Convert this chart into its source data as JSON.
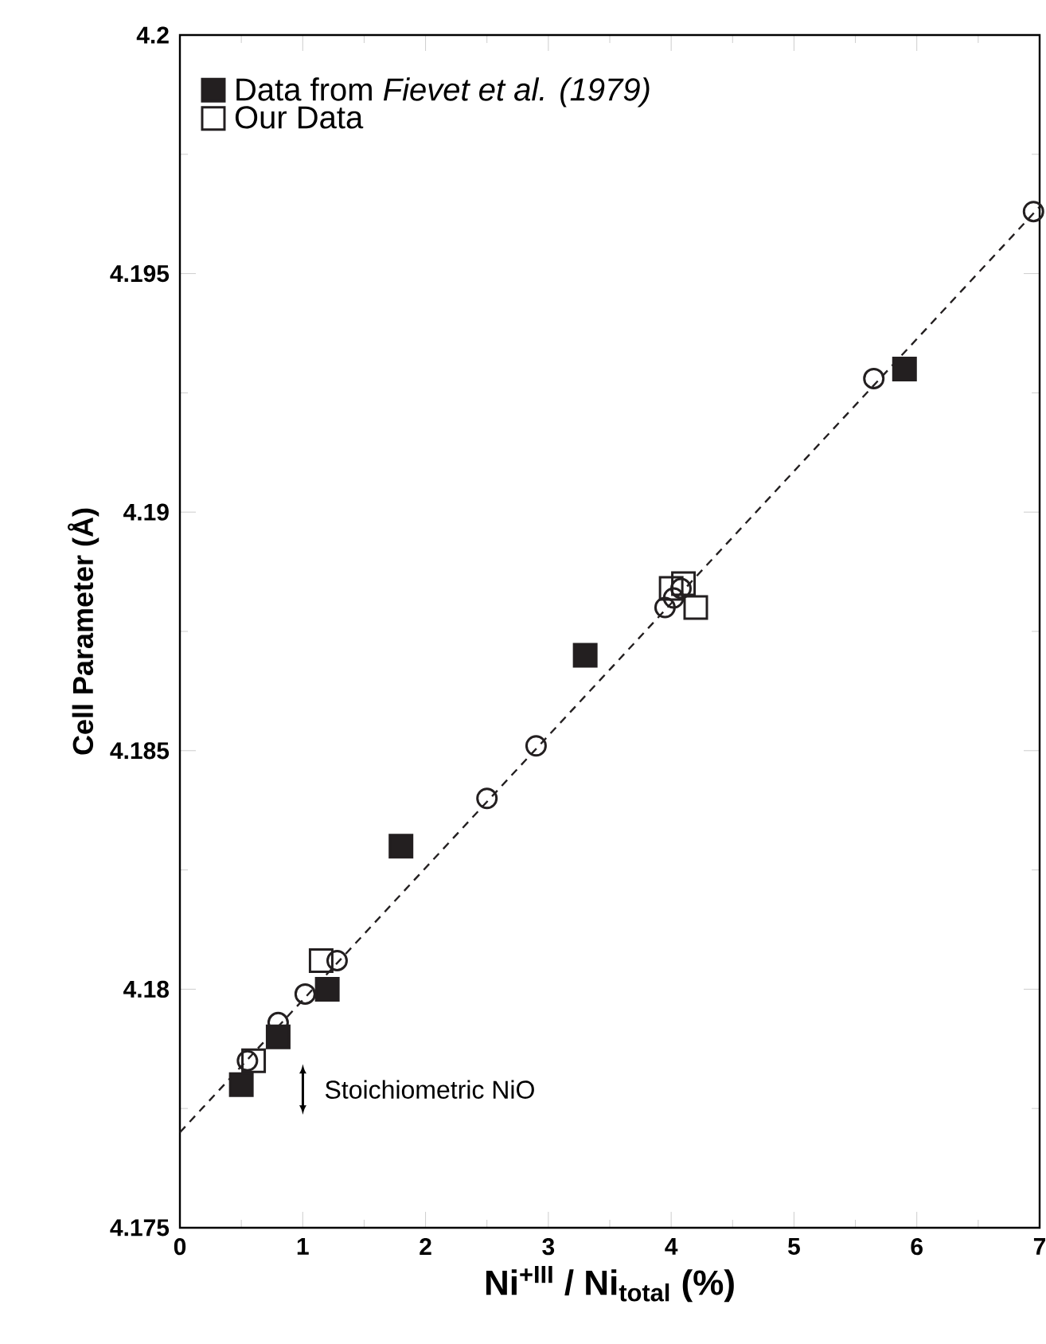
{
  "chart_data": {
    "type": "scatter",
    "xlabel": "Ni$^{+III}$ / Ni$_{total}$ (%)",
    "ylabel": "Cell Parameter (Å)",
    "xlim": [
      0,
      7
    ],
    "ylim": [
      4.175,
      4.2
    ],
    "xticks": [
      0,
      1,
      2,
      3,
      4,
      5,
      6,
      7
    ],
    "yticks": [
      4.175,
      4.18,
      4.185,
      4.19,
      4.195,
      4.2
    ],
    "legend": "top left",
    "grid": false,
    "annotations": [
      "Stoichiometric NiO"
    ],
    "series": [
      {
        "name": "Data from *Fievet et al. (1979)*",
        "marker": "square",
        "color": "#231f20",
        "x": [
          0.5,
          0.8,
          1.2,
          1.8,
          3.3,
          5.9
        ],
        "values": [
          4.178,
          4.179,
          4.18,
          4.183,
          4.187,
          4.193
        ]
      },
      {
        "name": "Our Data",
        "marker": "square",
        "color": "#231f20",
        "x": [
          0.6,
          1.15,
          4.0,
          4.1,
          4.2
        ],
        "values": [
          4.1785,
          4.1806,
          4.1884,
          4.1885,
          4.188
        ]
      },
      {
        "marker": "circle",
        "color": "#231f20",
        "x": [
          0.55,
          0.8,
          1.02,
          1.28,
          2.5,
          2.9,
          3.95,
          4.02,
          4.08,
          5.65,
          6.95
        ],
        "values": [
          4.1785,
          4.1793,
          4.1799,
          4.1806,
          4.184,
          4.1851,
          4.188,
          4.1882,
          4.1884,
          4.1928,
          4.1963
        ]
      },
      {
        "type": "line",
        "marker": "none",
        "line_style": "dashed",
        "color": "#231f20",
        "x": [
          0,
          7
        ],
        "values": [
          4.177,
          4.1964
        ]
      }
    ]
  }
}
